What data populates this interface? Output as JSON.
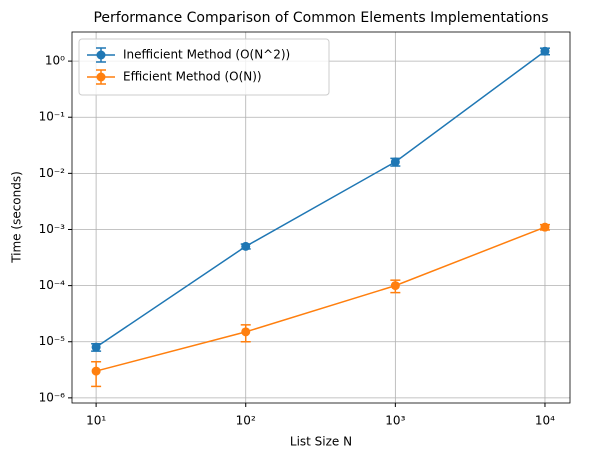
{
  "chart_data": {
    "type": "line",
    "title": "Performance Comparison of Common Elements Implementations",
    "xlabel": "List Size N",
    "ylabel": "Time (seconds)",
    "x": [
      10,
      100,
      1000,
      10000
    ],
    "series": [
      {
        "name": "Inefficient Method (O(N^2))",
        "color": "#1f77b4",
        "values": [
          8e-06,
          0.0005,
          0.016,
          1.5
        ],
        "errors": [
          1.2e-06,
          5e-05,
          0.0025,
          0.2
        ]
      },
      {
        "name": "Efficient Method (O(N))",
        "color": "#ff7f0e",
        "values": [
          3e-06,
          1.5e-05,
          0.0001,
          0.0011
        ],
        "errors": [
          1.4e-06,
          5e-06,
          2.5e-05,
          0.00012
        ]
      }
    ],
    "xscale": "log",
    "yscale": "log",
    "xlim": [
      6.9,
      14700
    ],
    "ylim": [
      8.1e-07,
      3.3
    ],
    "xticks": [
      {
        "value": 10,
        "label": "10¹"
      },
      {
        "value": 100,
        "label": "10²"
      },
      {
        "value": 1000,
        "label": "10³"
      },
      {
        "value": 10000,
        "label": "10⁴"
      }
    ],
    "yticks": [
      {
        "value": 1e-06,
        "label": "10⁻⁶"
      },
      {
        "value": 1e-05,
        "label": "10⁻⁵"
      },
      {
        "value": 0.0001,
        "label": "10⁻⁴"
      },
      {
        "value": 0.001,
        "label": "10⁻³"
      },
      {
        "value": 0.01,
        "label": "10⁻²"
      },
      {
        "value": 0.1,
        "label": "10⁻¹"
      },
      {
        "value": 1,
        "label": "10⁰"
      }
    ],
    "grid": true,
    "legend": "upper left"
  }
}
